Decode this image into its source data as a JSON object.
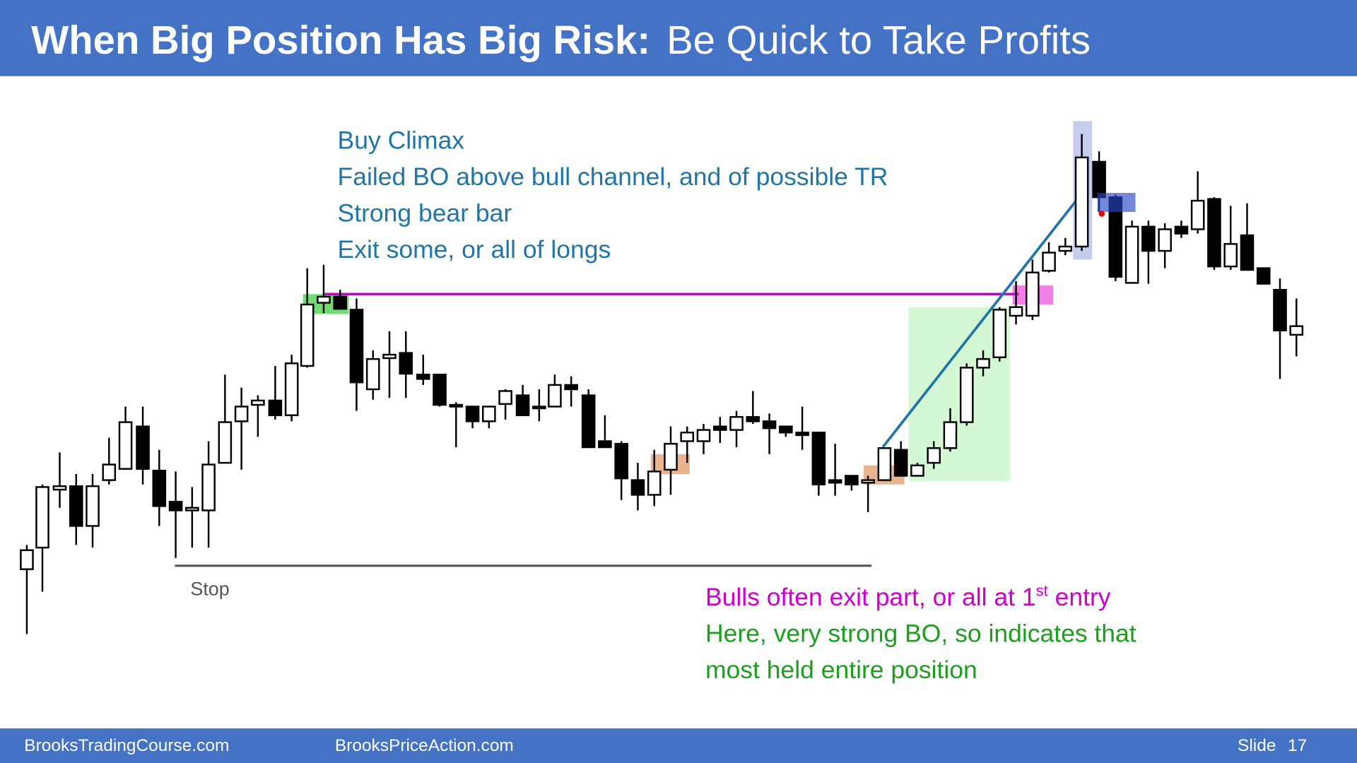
{
  "header": {
    "title_bold": "When Big Position Has Big Risk:",
    "title_rest": "Be Quick to Take Profits"
  },
  "annotations": {
    "top": [
      "Buy Climax",
      "Failed BO above bull channel, and of possible TR",
      "Strong bear bar",
      "Exit some, or all of longs"
    ],
    "stop": "Stop",
    "magenta": {
      "before": "Bulls often exit part, or all at 1",
      "sup": "st",
      "after": " entry"
    },
    "green": [
      "Here, very strong BO, so indicates that",
      "most held entire position"
    ]
  },
  "footer": {
    "left": "BrooksTradingCourse.com",
    "middle": "BrooksPriceAction.com",
    "slide_label": "Slide",
    "slide_number": "17"
  }
}
